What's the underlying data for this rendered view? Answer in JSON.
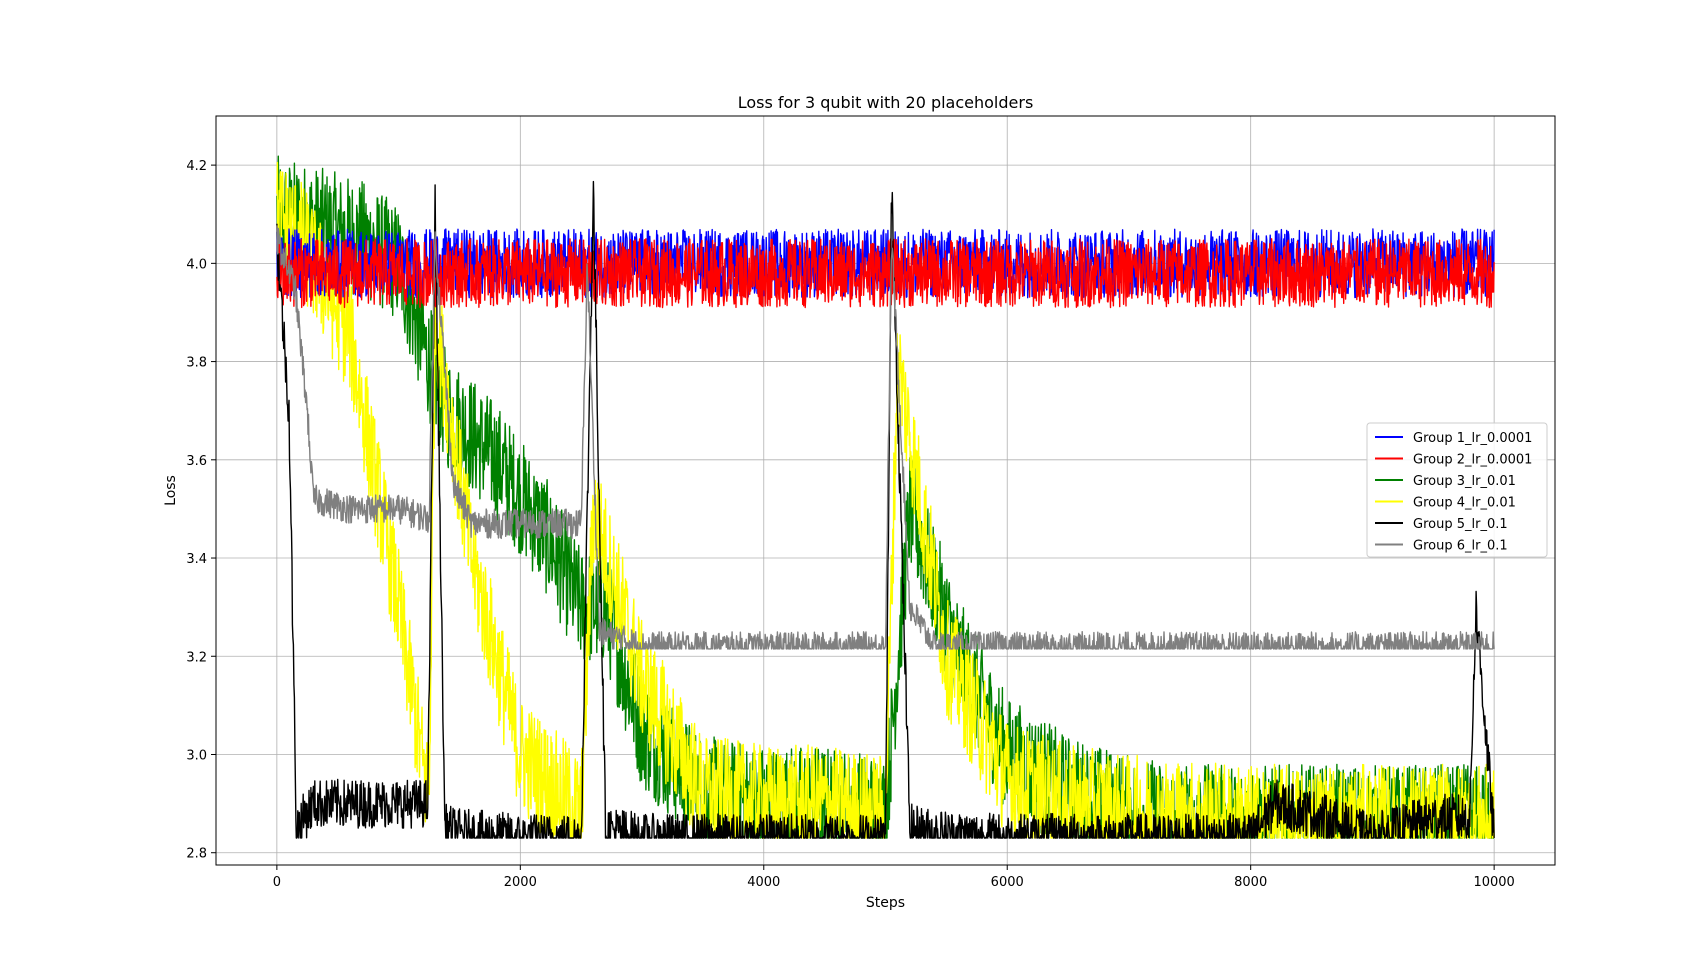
{
  "chart_data": {
    "type": "line",
    "title": "Loss for 3 qubit with 20 placeholders",
    "xlabel": "Steps",
    "ylabel": "Loss",
    "xlim": [
      -500,
      10500
    ],
    "ylim": [
      2.775,
      4.3
    ],
    "xticks": [
      0,
      2000,
      4000,
      6000,
      8000,
      10000
    ],
    "xtick_labels": [
      "0",
      "2000",
      "4000",
      "6000",
      "8000",
      "10000"
    ],
    "yticks": [
      2.8,
      3.0,
      3.2,
      3.4,
      3.6,
      3.8,
      4.0,
      4.2
    ],
    "ytick_labels": [
      "2.8",
      "3.0",
      "3.2",
      "3.4",
      "3.6",
      "3.8",
      "4.0",
      "4.2"
    ],
    "grid": true,
    "legend_position": "center-right",
    "restarts": [
      0,
      1250,
      2500,
      5000
    ],
    "series": [
      {
        "name": "Group 1_lr_0.0001",
        "color": "#0000ff",
        "x": [
          0,
          500,
          1000,
          1250,
          1500,
          2000,
          2500,
          3000,
          3500,
          4000,
          4500,
          5000,
          5500,
          6000,
          6500,
          7000,
          7500,
          8000,
          8500,
          9000,
          9500,
          10000
        ],
        "y": [
          4.0,
          4.0,
          4.0,
          4.0,
          4.0,
          4.0,
          4.0,
          4.0,
          4.0,
          4.0,
          4.0,
          4.0,
          4.0,
          4.0,
          4.0,
          4.0,
          4.0,
          4.0,
          4.0,
          4.0,
          4.0,
          4.0
        ],
        "noise": 0.07
      },
      {
        "name": "Group 2_lr_0.0001",
        "color": "#ff0000",
        "x": [
          0,
          500,
          1000,
          1250,
          1500,
          2000,
          2500,
          3000,
          3500,
          4000,
          4500,
          5000,
          5500,
          6000,
          6500,
          7000,
          7500,
          8000,
          8500,
          9000,
          9500,
          10000
        ],
        "y": [
          3.98,
          3.98,
          3.98,
          3.98,
          3.98,
          3.98,
          3.98,
          3.98,
          3.98,
          3.98,
          3.98,
          3.98,
          3.98,
          3.98,
          3.98,
          3.98,
          3.98,
          3.98,
          3.98,
          3.98,
          3.98,
          3.98
        ],
        "noise": 0.07
      },
      {
        "name": "Group 3_lr_0.01",
        "color": "#008000",
        "x": [
          0,
          300,
          700,
          1000,
          1250,
          1400,
          1800,
          2200,
          2500,
          2700,
          3000,
          3500,
          4000,
          4500,
          5000,
          5200,
          5600,
          6000,
          6500,
          7000,
          7500,
          8000,
          8500,
          9000,
          9500,
          10000
        ],
        "y": [
          4.1,
          4.08,
          4.05,
          4.0,
          3.8,
          3.7,
          3.6,
          3.45,
          3.3,
          3.3,
          3.05,
          2.92,
          2.9,
          2.9,
          2.88,
          3.5,
          3.2,
          3.0,
          2.92,
          2.88,
          2.86,
          2.86,
          2.86,
          2.86,
          2.86,
          2.86
        ],
        "noise": 0.12
      },
      {
        "name": "Group 4_lr_0.01",
        "color": "#ffff00",
        "x": [
          0,
          200,
          600,
          1000,
          1250,
          1300,
          1600,
          2000,
          2500,
          2600,
          3000,
          3500,
          4000,
          4500,
          5000,
          5100,
          5500,
          6000,
          6500,
          7000,
          7500,
          8000,
          8500,
          9000,
          9500,
          10000
        ],
        "y": [
          4.1,
          4.05,
          3.85,
          3.3,
          2.9,
          3.9,
          3.4,
          3.0,
          2.88,
          3.5,
          3.15,
          2.92,
          2.9,
          2.9,
          2.88,
          3.8,
          3.2,
          2.95,
          2.9,
          2.88,
          2.87,
          2.86,
          2.86,
          2.86,
          2.86,
          2.86
        ],
        "noise": 0.12
      },
      {
        "name": "Group 5_lr_0.1",
        "color": "#000000",
        "x": [
          0,
          100,
          160,
          300,
          600,
          1000,
          1240,
          1300,
          1380,
          1500,
          2000,
          2500,
          2600,
          2700,
          3000,
          4000,
          5000,
          5050,
          5200,
          5400,
          6000,
          7000,
          8000,
          8200,
          8500,
          9000,
          9500,
          9800,
          9850,
          10000
        ],
        "y": [
          4.05,
          3.7,
          2.85,
          2.9,
          2.9,
          2.9,
          2.9,
          4.12,
          2.85,
          2.84,
          2.83,
          2.83,
          4.15,
          2.85,
          2.83,
          2.83,
          2.83,
          4.15,
          2.85,
          2.84,
          2.83,
          2.83,
          2.83,
          2.9,
          2.88,
          2.83,
          2.87,
          2.87,
          3.3,
          2.83
        ],
        "noise": 0.05
      },
      {
        "name": "Group 6_lr_0.1",
        "color": "#808080",
        "x": [
          0,
          150,
          250,
          300,
          600,
          1000,
          1250,
          1300,
          1450,
          1600,
          2000,
          2500,
          2550,
          2650,
          3000,
          4000,
          5000,
          5050,
          5200,
          5400,
          6000,
          7000,
          8000,
          9000,
          10000
        ],
        "y": [
          4.05,
          3.95,
          3.7,
          3.52,
          3.5,
          3.5,
          3.48,
          4.05,
          3.55,
          3.47,
          3.47,
          3.47,
          4.0,
          3.25,
          3.22,
          3.22,
          3.22,
          4.05,
          3.3,
          3.22,
          3.22,
          3.22,
          3.22,
          3.22,
          3.22
        ],
        "noise": 0.03
      }
    ]
  }
}
